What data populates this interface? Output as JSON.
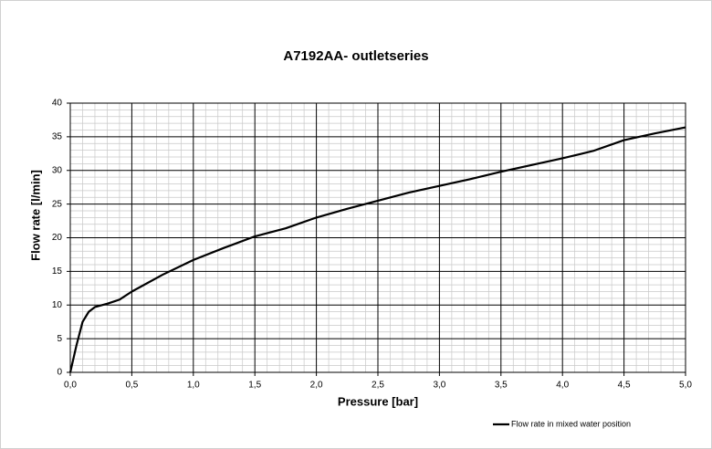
{
  "chart_data": {
    "type": "line",
    "title": "A7192AA- outletseries",
    "x_label": "Pressure [bar]",
    "y_label": "Flow rate [l/min]",
    "x": [
      0,
      0.05,
      0.1,
      0.15,
      0.2,
      0.3,
      0.4,
      0.5,
      0.75,
      1.0,
      1.25,
      1.5,
      1.75,
      2.0,
      2.25,
      2.5,
      2.75,
      3.0,
      3.25,
      3.5,
      3.75,
      4.0,
      4.25,
      4.5,
      4.75,
      5.0
    ],
    "series": [
      {
        "name": "Flow rate in mixed water position",
        "color": "#000000",
        "values": [
          0,
          4,
          7.5,
          9,
          9.7,
          10.2,
          10.8,
          12,
          14.5,
          16.7,
          18.5,
          20.2,
          21.4,
          23,
          24.3,
          25.5,
          26.7,
          27.7,
          28.7,
          29.8,
          30.8,
          31.8,
          32.9,
          34.5,
          35.5,
          36.4
        ]
      }
    ],
    "xlim": [
      0,
      5
    ],
    "xticks": [
      {
        "value": 0,
        "label": "0,0"
      },
      {
        "value": 0.5,
        "label": "0,5"
      },
      {
        "value": 1,
        "label": "1,0"
      },
      {
        "value": 1.5,
        "label": "1,5"
      },
      {
        "value": 2,
        "label": "2,0"
      },
      {
        "value": 2.5,
        "label": "2,5"
      },
      {
        "value": 3,
        "label": "3,0"
      },
      {
        "value": 3.5,
        "label": "3,5"
      },
      {
        "value": 4,
        "label": "4,0"
      },
      {
        "value": 4.5,
        "label": "4,5"
      },
      {
        "value": 5,
        "label": "5,0"
      }
    ],
    "ylim": [
      0,
      40
    ],
    "yticks": [
      0,
      5,
      10,
      15,
      20,
      25,
      30,
      35,
      40
    ],
    "grid": true,
    "legend": "bottom-right"
  }
}
